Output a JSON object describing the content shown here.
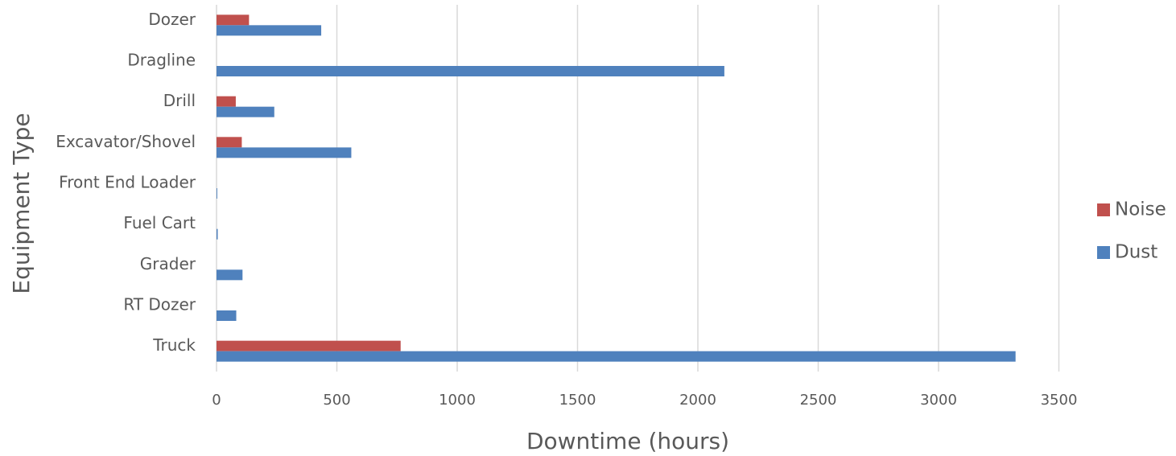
{
  "chart_data": {
    "type": "bar",
    "orientation": "horizontal",
    "title": "",
    "xlabel": "Downtime (hours)",
    "ylabel": "Equipment Type",
    "categories": [
      "Dozer",
      "Dragline",
      "Drill",
      "Excavator/Shovel",
      "Front End Loader",
      "Fuel Cart",
      "Grader",
      "RT Dozer",
      "Truck"
    ],
    "series": [
      {
        "name": "Noise",
        "color": "#c0504d",
        "values": [
          135,
          0,
          80,
          105,
          0,
          0,
          0,
          0,
          765
        ]
      },
      {
        "name": "Dust",
        "color": "#4f81bd",
        "values": [
          435,
          2110,
          240,
          560,
          3,
          5,
          108,
          82,
          3320
        ]
      }
    ],
    "xlim": [
      0,
      3500
    ],
    "xticks": [
      "0",
      "500",
      "1000",
      "1500",
      "2000",
      "2500",
      "3000",
      "3500"
    ],
    "xtick_values": [
      0,
      500,
      1000,
      1500,
      2000,
      2500,
      3000,
      3500
    ],
    "grid": "vertical",
    "legend_position": "right",
    "legend_order": [
      "Noise",
      "Dust"
    ]
  }
}
